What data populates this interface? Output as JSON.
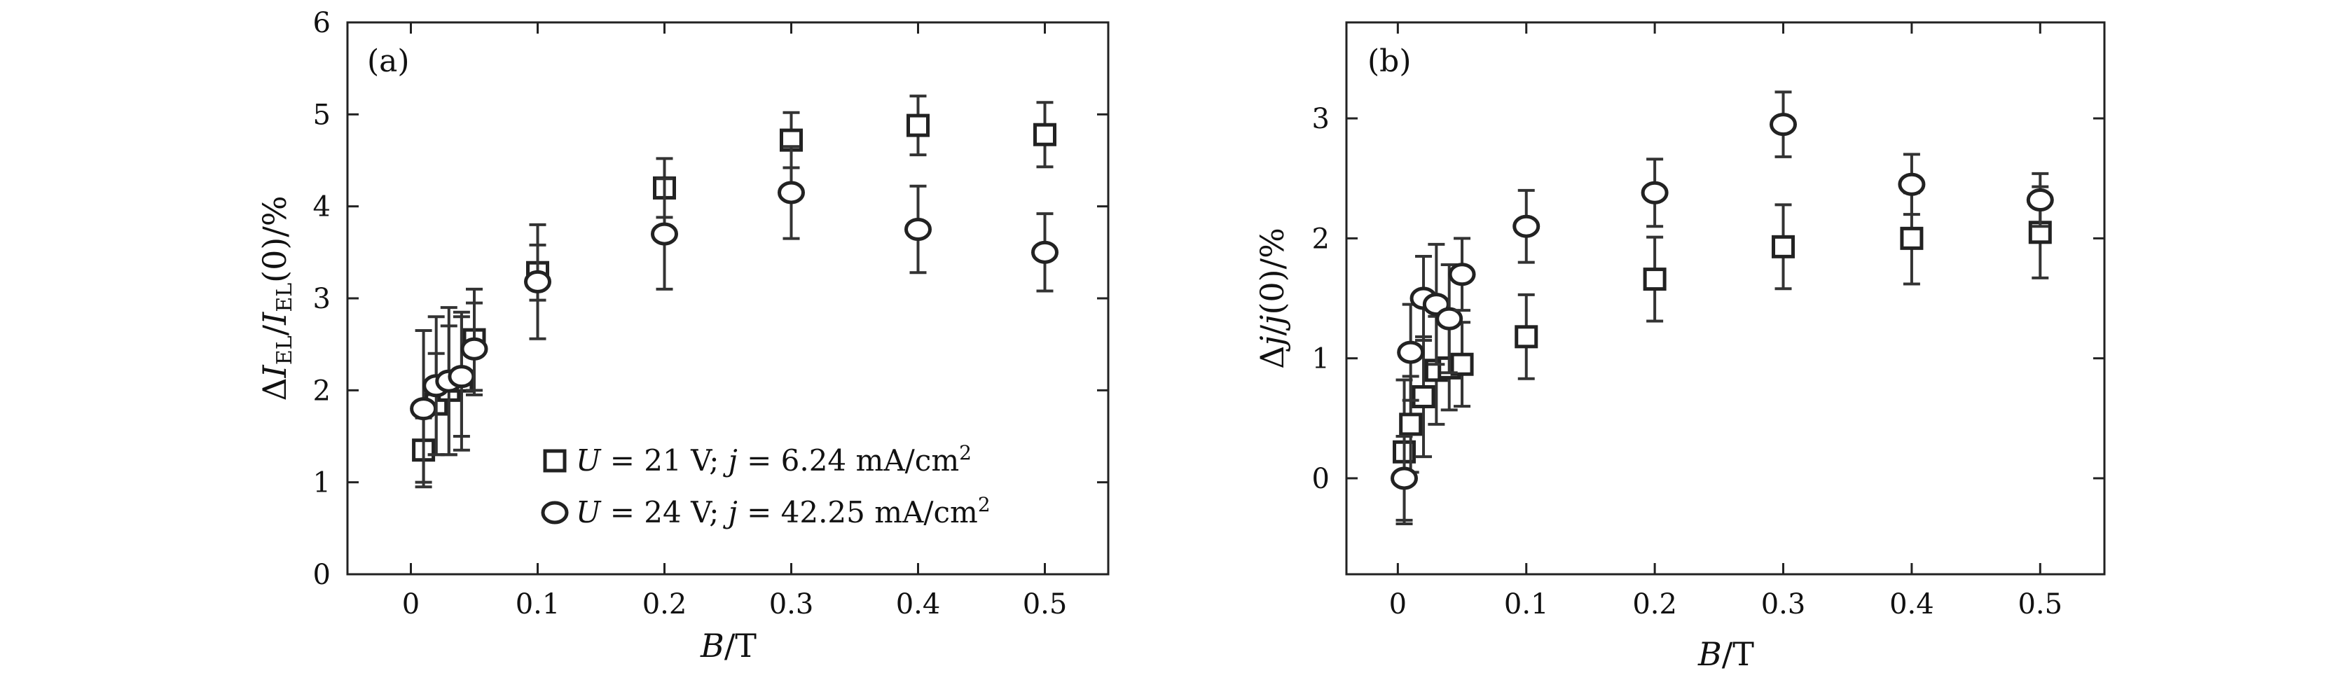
{
  "chart_data": [
    {
      "type": "scatter",
      "panel_label": "(a)",
      "xlabel": "B/T",
      "ylabel": "ΔI_EL/I_EL(0)/%",
      "xlim": [
        -0.05,
        0.55
      ],
      "ylim": [
        0,
        6
      ],
      "x_ticks": [
        0,
        0.1,
        0.2,
        0.3,
        0.4,
        0.5
      ],
      "x_tick_labels": [
        "0",
        "0.1",
        "0.2",
        "0.3",
        "0.4",
        "0.5"
      ],
      "y_ticks": [
        0,
        1,
        2,
        3,
        4,
        5,
        6
      ],
      "y_tick_labels": [
        "0",
        "1",
        "2",
        "3",
        "4",
        "5",
        "6"
      ],
      "legend_position": "bottom-center",
      "series": [
        {
          "name": "U = 21 V; j = 6.24 mA/cm²",
          "marker": "square",
          "x": [
            0.01,
            0.02,
            0.03,
            0.04,
            0.05,
            0.1,
            0.2,
            0.3,
            0.4,
            0.5
          ],
          "y": [
            1.35,
            1.85,
            2.0,
            2.1,
            2.55,
            3.28,
            4.2,
            4.72,
            4.88,
            4.78
          ],
          "err": [
            0.35,
            0.55,
            0.7,
            0.75,
            0.55,
            0.3,
            0.32,
            0.3,
            0.32,
            0.35
          ]
        },
        {
          "name": "U = 24 V; j = 42.25 mA/cm²",
          "marker": "circle",
          "x": [
            0.01,
            0.02,
            0.03,
            0.04,
            0.05,
            0.1,
            0.2,
            0.3,
            0.4,
            0.5
          ],
          "y": [
            1.8,
            2.05,
            2.1,
            2.15,
            2.45,
            3.18,
            3.7,
            4.15,
            3.75,
            3.5
          ],
          "err": [
            0.85,
            0.75,
            0.8,
            0.65,
            0.5,
            0.62,
            0.6,
            0.5,
            0.47,
            0.42
          ]
        }
      ]
    },
    {
      "type": "scatter",
      "panel_label": "(b)",
      "xlabel": "B/T",
      "ylabel": "Δj/j(0)/%",
      "xlim": [
        -0.04,
        0.55
      ],
      "ylim": [
        -0.8,
        3.8
      ],
      "x_ticks": [
        0,
        0.1,
        0.2,
        0.3,
        0.4,
        0.5
      ],
      "x_tick_labels": [
        "0",
        "0.1",
        "0.2",
        "0.3",
        "0.4",
        "0.5"
      ],
      "y_ticks": [
        0,
        1,
        2,
        3
      ],
      "y_tick_labels": [
        "0",
        "1",
        "2",
        "3"
      ],
      "series": [
        {
          "marker": "square",
          "x": [
            0.005,
            0.01,
            0.02,
            0.03,
            0.04,
            0.05,
            0.1,
            0.2,
            0.3,
            0.4,
            0.5
          ],
          "y": [
            0.22,
            0.45,
            0.68,
            0.9,
            0.92,
            0.95,
            1.18,
            1.66,
            1.93,
            2.0,
            2.05
          ],
          "err": [
            0.6,
            0.4,
            0.5,
            0.45,
            0.35,
            0.35,
            0.35,
            0.35,
            0.35,
            0.38,
            0.38
          ]
        },
        {
          "marker": "circle",
          "x": [
            0.005,
            0.01,
            0.02,
            0.03,
            0.04,
            0.05,
            0.1,
            0.2,
            0.3,
            0.4,
            0.5
          ],
          "y": [
            0.0,
            1.05,
            1.5,
            1.45,
            1.33,
            1.7,
            2.1,
            2.38,
            2.95,
            2.45,
            2.32
          ],
          "err": [
            0.35,
            0.4,
            0.35,
            0.5,
            0.45,
            0.3,
            0.3,
            0.28,
            0.27,
            0.25,
            0.22
          ]
        }
      ]
    }
  ]
}
